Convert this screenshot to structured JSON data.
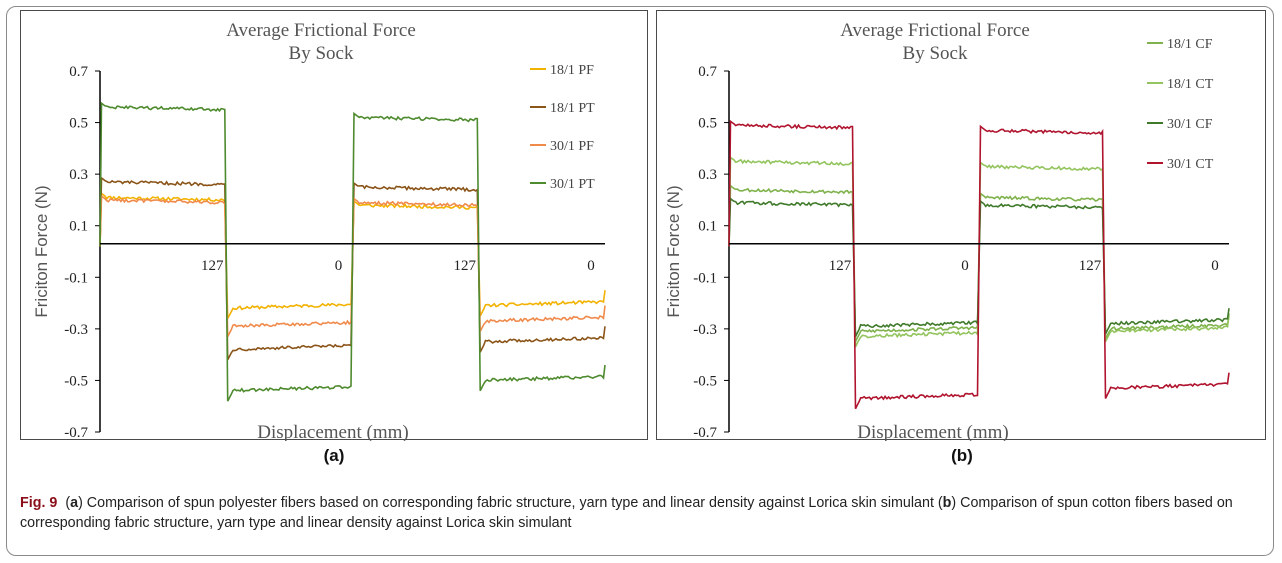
{
  "figure": {
    "caption_number": "Fig. 9",
    "caption_parts": [
      {
        "t": "(",
        "b": false
      },
      {
        "t": "a",
        "b": true
      },
      {
        "t": ") Comparison of spun polyester fibers based on corresponding fabric structure, yarn type and linear density against Lorica skin simulant (",
        "b": false
      },
      {
        "t": "b",
        "b": true
      },
      {
        "t": ") Comparison of spun cotton fibers based on corresponding fabric structure, yarn type and linear density against Lorica skin simulant",
        "b": false
      }
    ]
  },
  "panel_labels": [
    "(a)",
    "(b)"
  ],
  "chart_data": [
    {
      "type": "line",
      "title": [
        "Average Frictional Force",
        "By Sock"
      ],
      "xlabel": "Displacement (mm)",
      "ylabel": "Friciton Force (N)",
      "ylim": [
        -0.7,
        0.7
      ],
      "yticks": [
        0.7,
        0.5,
        0.3,
        0.1,
        -0.1,
        -0.3,
        -0.5,
        -0.7
      ],
      "x_tick_labels": [
        {
          "x": 127,
          "label": "127"
        },
        {
          "x": 254,
          "label": "0"
        },
        {
          "x": 381,
          "label": "127"
        },
        {
          "x": 508,
          "label": "0"
        }
      ],
      "xlim": [
        0,
        508
      ],
      "legend_position": "right",
      "grid": false,
      "series": [
        {
          "name": "18/1 PF",
          "color": "#f2b200",
          "levels": [
            0.21,
            0.18,
            -0.22,
            -0.21
          ]
        },
        {
          "name": "18/1 PT",
          "color": "#8b5418",
          "levels": [
            0.27,
            0.25,
            -0.38,
            -0.35
          ]
        },
        {
          "name": "30/1 PF",
          "color": "#f08a4b",
          "levels": [
            0.2,
            0.19,
            -0.29,
            -0.27
          ]
        },
        {
          "name": "30/1 PT",
          "color": "#4e8a2e",
          "levels": [
            0.56,
            0.52,
            -0.54,
            -0.5
          ]
        }
      ]
    },
    {
      "type": "line",
      "title": [
        "Average Frictional Force",
        "By Sock"
      ],
      "xlabel": "Displacement (mm)",
      "ylabel": "Friciton Force (N)",
      "ylim": [
        -0.7,
        0.7
      ],
      "yticks": [
        0.7,
        0.5,
        0.3,
        0.1,
        -0.1,
        -0.3,
        -0.5,
        -0.7
      ],
      "x_tick_labels": [
        {
          "x": 127,
          "label": "127"
        },
        {
          "x": 254,
          "label": "0"
        },
        {
          "x": 381,
          "label": "127"
        },
        {
          "x": 508,
          "label": "0"
        }
      ],
      "xlim": [
        0,
        508
      ],
      "legend_position": "right",
      "grid": false,
      "series": [
        {
          "name": "18/1 CF",
          "color": "#7fb24c",
          "levels": [
            0.24,
            0.21,
            -0.31,
            -0.3
          ]
        },
        {
          "name": "18/1 CT",
          "color": "#93c45e",
          "levels": [
            0.35,
            0.33,
            -0.33,
            -0.31
          ]
        },
        {
          "name": "30/1 CF",
          "color": "#3f7a2a",
          "levels": [
            0.19,
            0.18,
            -0.29,
            -0.28
          ]
        },
        {
          "name": "30/1 CT",
          "color": "#b0142e",
          "levels": [
            0.49,
            0.47,
            -0.57,
            -0.53
          ]
        }
      ]
    }
  ]
}
